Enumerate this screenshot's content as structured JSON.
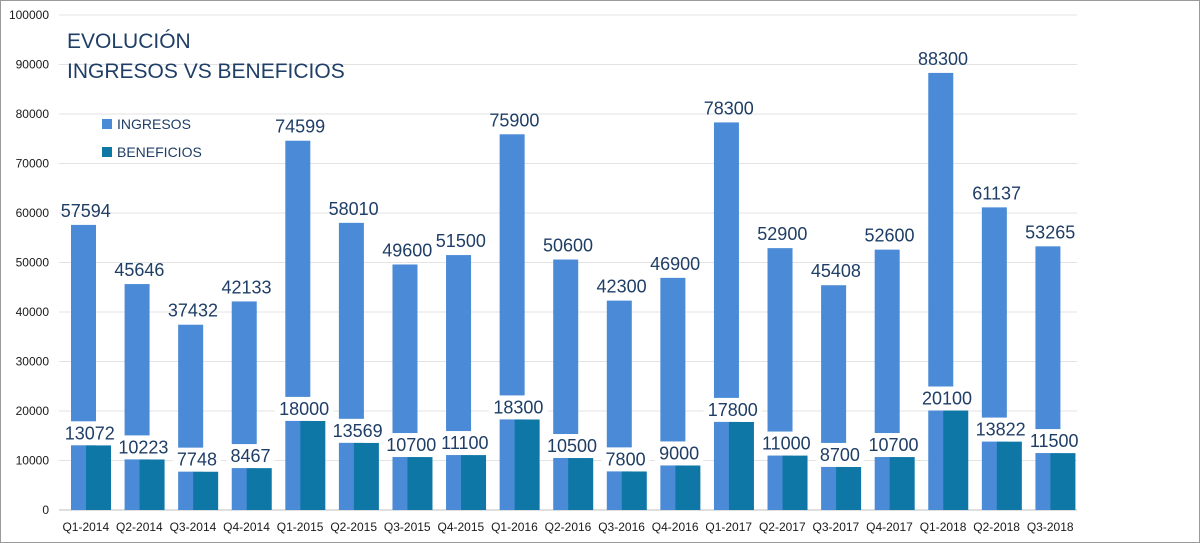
{
  "chart_data": {
    "type": "bar",
    "title_lines": [
      "EVOLUCIÓN",
      "INGRESOS VS BENEFICIOS"
    ],
    "categories": [
      "Q1-2014",
      "Q2-2014",
      "Q3-2014",
      "Q4-2014",
      "Q1-2015",
      "Q2-2015",
      "Q3-2015",
      "Q4-2015",
      "Q1-2016",
      "Q2-2016",
      "Q3-2016",
      "Q4-2016",
      "Q1-2017",
      "Q2-2017",
      "Q3-2017",
      "Q4-2017",
      "Q1-2018",
      "Q2-2018",
      "Q3-2018"
    ],
    "series": [
      {
        "name": "INGRESOS",
        "color": "#4a8ad6",
        "values": [
          57594,
          45646,
          37432,
          42133,
          74599,
          58010,
          49600,
          51500,
          75900,
          50600,
          42300,
          46900,
          78300,
          52900,
          45408,
          52600,
          88300,
          61137,
          53265
        ]
      },
      {
        "name": "BENEFICIOS",
        "color": "#0e77a6",
        "values": [
          13072,
          10223,
          7748,
          8467,
          18000,
          13569,
          10700,
          11100,
          18300,
          10500,
          7800,
          9000,
          17800,
          11000,
          8700,
          10700,
          20100,
          13822,
          11500
        ]
      }
    ],
    "ylim": [
      0,
      100000
    ],
    "yticks": [
      0,
      10000,
      20000,
      30000,
      40000,
      50000,
      60000,
      70000,
      80000,
      90000,
      100000
    ],
    "grid": true,
    "legend_position": "top-left"
  }
}
